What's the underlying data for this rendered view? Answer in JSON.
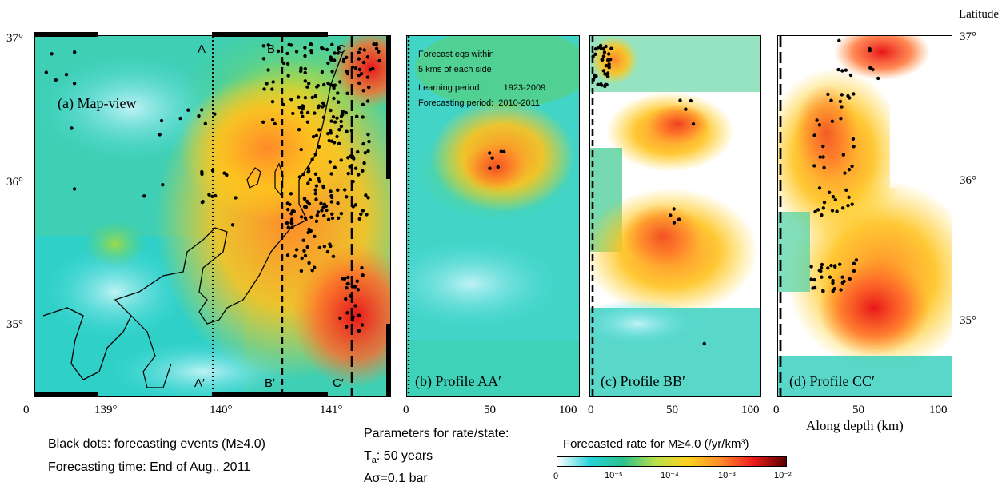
{
  "panels": {
    "a": {
      "title": "(a) Map-view",
      "lines": [
        {
          "top": "A",
          "bottom": "A′"
        },
        {
          "top": "B",
          "bottom": "B′"
        },
        {
          "top": "C",
          "bottom": "C′"
        }
      ]
    },
    "b": {
      "title": "(b) Profile AA′"
    },
    "c": {
      "title": "(c) Profile BB′"
    },
    "d": {
      "title": "(d) Profile CC′"
    }
  },
  "info_box": {
    "line1": "Forecast eqs within",
    "line2": "5 kms of each side",
    "learning_label": "Learning period:",
    "learning_value": "1923-2009",
    "forecast_label": "Forecasting period:",
    "forecast_value": "2010-2011"
  },
  "axes": {
    "map_x_ticks": [
      "139°",
      "140°",
      "141°"
    ],
    "map_x_origin": "0",
    "lat_ticks_left": [
      "37°",
      "36°",
      "35°"
    ],
    "lat_ticks_right": [
      "37°",
      "36°",
      "35°"
    ],
    "profile_ticks": [
      "0",
      "50",
      "100"
    ],
    "right_axis_title": "Latitude",
    "depth_label": "Along depth (km)"
  },
  "notes": {
    "black_dots": "Black dots: forecasting events (M≥4.0)",
    "forecast_time": "Forecasting time: End of Aug., 2011",
    "params_title": "Parameters for rate/state:",
    "ta_symbol": "T",
    "ta_sub": "a",
    "ta_value": ": 50 years",
    "asigma": "Aσ=0.1 bar"
  },
  "colorbar": {
    "title": "Forecasted rate for M≥4.0 (/yr/km³)",
    "labels": [
      "0",
      "10⁻⁵",
      "10⁻⁴",
      "10⁻³",
      "10⁻²"
    ],
    "colors": [
      "#ffffff",
      "#28d2d8",
      "#2bc08e",
      "#b8e04a",
      "#ffd21e",
      "#ff8a2a",
      "#ee1c1c",
      "#5a0000"
    ]
  }
}
